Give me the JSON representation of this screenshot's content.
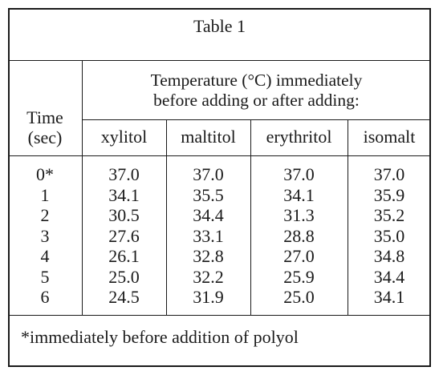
{
  "table": {
    "title": "Table 1",
    "row_header": "Time\n(sec)",
    "group_header": "Temperature (°C) immediately\nbefore adding or after adding:",
    "columns": [
      "xylitol",
      "maltitol",
      "erythritol",
      "isomalt"
    ],
    "time": [
      "0*",
      "1",
      "2",
      "3",
      "4",
      "5",
      "6"
    ],
    "xylitol": [
      "37.0",
      "34.1",
      "30.5",
      "27.6",
      "26.1",
      "25.0",
      "24.5"
    ],
    "maltitol": [
      "37.0",
      "35.5",
      "34.4",
      "33.1",
      "32.8",
      "32.2",
      "31.9"
    ],
    "erythritol": [
      "37.0",
      "34.1",
      "31.3",
      "28.8",
      "27.0",
      "25.9",
      "25.0"
    ],
    "isomalt": [
      "37.0",
      "35.9",
      "35.2",
      "35.0",
      "34.8",
      "34.4",
      "34.1"
    ],
    "footnote": "*immediately before addition of polyol"
  }
}
